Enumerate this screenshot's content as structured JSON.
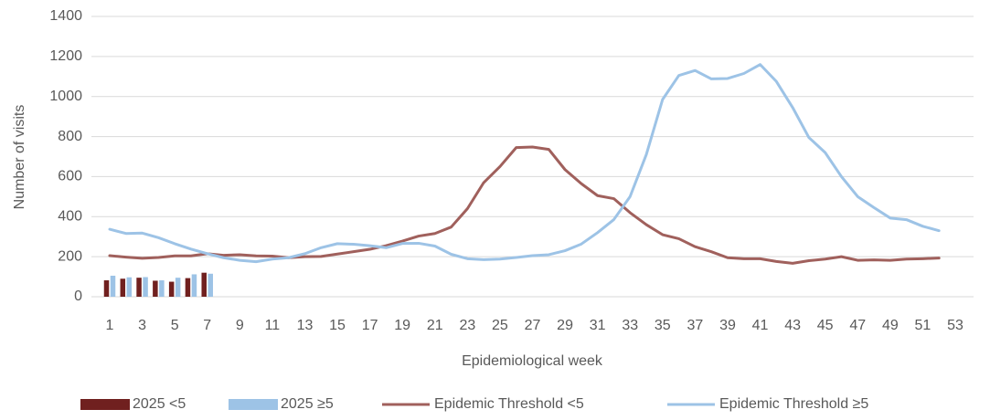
{
  "chart_data": {
    "type": "bar",
    "y_label": "Number of visits",
    "x_label": "Epidemiological week",
    "xlim": [
      1,
      53
    ],
    "xticks": [
      1,
      3,
      5,
      7,
      9,
      11,
      13,
      15,
      17,
      19,
      21,
      23,
      25,
      27,
      29,
      31,
      33,
      35,
      37,
      39,
      41,
      43,
      45,
      47,
      49,
      51,
      53
    ],
    "ylim": [
      0,
      1400
    ],
    "yticks": [
      0,
      200,
      400,
      600,
      800,
      1000,
      1200,
      1400
    ],
    "grid": true,
    "legend": "bottom",
    "series": [
      {
        "name": "2025 <5",
        "type": "bar",
        "color": "#70201f",
        "x": [
          1,
          2,
          3,
          4,
          5,
          6,
          7
        ],
        "values": [
          82,
          90,
          95,
          80,
          75,
          93,
          120
        ]
      },
      {
        "name": "2025 ≥5",
        "type": "bar",
        "color": "#9dc3e6",
        "x": [
          1,
          2,
          3,
          4,
          5,
          6,
          7
        ],
        "values": [
          105,
          97,
          98,
          82,
          95,
          112,
          115
        ]
      },
      {
        "name": "Epidemic Threshold <5",
        "type": "line",
        "color": "#a0605c",
        "x": [
          1,
          2,
          3,
          4,
          5,
          6,
          7,
          8,
          9,
          10,
          11,
          12,
          13,
          14,
          15,
          16,
          17,
          18,
          19,
          20,
          21,
          22,
          23,
          24,
          25,
          26,
          27,
          28,
          29,
          30,
          31,
          32,
          33,
          34,
          35,
          36,
          37,
          38,
          39,
          40,
          41,
          42,
          43,
          44,
          45,
          46,
          47,
          48,
          49,
          50,
          51,
          52
        ],
        "values": [
          205,
          198,
          192,
          196,
          204,
          204,
          215,
          207,
          210,
          204,
          203,
          195,
          200,
          201,
          213,
          225,
          237,
          255,
          278,
          303,
          316,
          348,
          440,
          570,
          650,
          745,
          748,
          736,
          635,
          565,
          505,
          490,
          420,
          360,
          310,
          290,
          250,
          225,
          195,
          190,
          190,
          176,
          167,
          180,
          188,
          200,
          182,
          184,
          182,
          188,
          190,
          193
        ]
      },
      {
        "name": "Epidemic Threshold ≥5",
        "type": "line",
        "color": "#9dc3e6",
        "x": [
          1,
          2,
          3,
          4,
          5,
          6,
          7,
          8,
          9,
          10,
          11,
          12,
          13,
          14,
          15,
          16,
          17,
          18,
          19,
          20,
          21,
          22,
          23,
          24,
          25,
          26,
          27,
          28,
          29,
          30,
          31,
          32,
          33,
          34,
          35,
          36,
          37,
          38,
          39,
          40,
          41,
          42,
          43,
          44,
          45,
          46,
          47,
          48,
          49,
          50,
          51,
          52
        ],
        "values": [
          337,
          316,
          318,
          295,
          265,
          238,
          215,
          195,
          182,
          175,
          188,
          195,
          215,
          245,
          265,
          262,
          255,
          245,
          266,
          267,
          253,
          212,
          190,
          185,
          188,
          196,
          205,
          210,
          230,
          263,
          320,
          385,
          500,
          710,
          985,
          1105,
          1130,
          1088,
          1090,
          1115,
          1160,
          1075,
          945,
          795,
          720,
          600,
          500,
          445,
          393,
          385,
          352,
          330
        ]
      }
    ]
  }
}
